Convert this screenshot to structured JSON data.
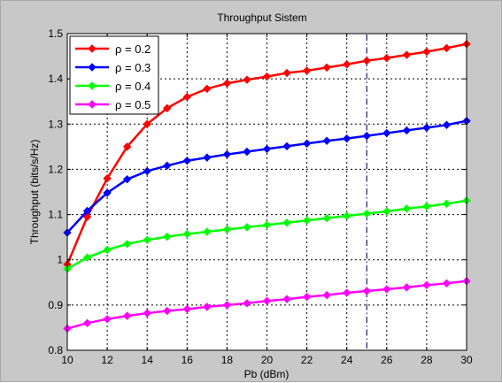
{
  "chart_data": {
    "type": "line",
    "title": "Throughput Sistem",
    "xlabel": "Pb (dBm)",
    "ylabel": "Throughput (bits/s/Hz)",
    "xlim": [
      10,
      30
    ],
    "ylim": [
      0.8,
      1.5
    ],
    "xticks": [
      "10",
      "12",
      "14",
      "16",
      "18",
      "20",
      "22",
      "24",
      "26",
      "28",
      "30"
    ],
    "yticks": [
      "0.8",
      "0.9",
      "1",
      "1.1",
      "1.2",
      "1.3",
      "1.4",
      "1.5"
    ],
    "grid": true,
    "legend_position": "top-left",
    "x": [
      10,
      11,
      12,
      13,
      14,
      15,
      16,
      17,
      18,
      19,
      20,
      21,
      22,
      23,
      24,
      25,
      26,
      27,
      28,
      29,
      30
    ],
    "series": [
      {
        "name": "ρ = 0.2",
        "color": "#ff0000",
        "values": [
          0.99,
          1.095,
          1.18,
          1.25,
          1.3,
          1.335,
          1.36,
          1.378,
          1.39,
          1.398,
          1.405,
          1.413,
          1.418,
          1.425,
          1.432,
          1.44,
          1.446,
          1.453,
          1.46,
          1.468,
          1.477
        ]
      },
      {
        "name": "ρ = 0.3",
        "color": "#0000ff",
        "values": [
          1.06,
          1.108,
          1.148,
          1.178,
          1.196,
          1.208,
          1.219,
          1.226,
          1.233,
          1.239,
          1.245,
          1.251,
          1.257,
          1.263,
          1.268,
          1.274,
          1.28,
          1.286,
          1.292,
          1.298,
          1.307
        ]
      },
      {
        "name": "ρ = 0.4",
        "color": "#00ff00",
        "values": [
          0.98,
          1.005,
          1.022,
          1.035,
          1.044,
          1.051,
          1.057,
          1.062,
          1.067,
          1.072,
          1.077,
          1.082,
          1.087,
          1.092,
          1.097,
          1.102,
          1.107,
          1.113,
          1.118,
          1.124,
          1.131
        ]
      },
      {
        "name": "ρ = 0.5",
        "color": "#ff00ff",
        "values": [
          0.848,
          0.86,
          0.869,
          0.876,
          0.882,
          0.887,
          0.891,
          0.896,
          0.9,
          0.904,
          0.909,
          0.913,
          0.918,
          0.922,
          0.927,
          0.931,
          0.935,
          0.939,
          0.944,
          0.948,
          0.953
        ]
      }
    ],
    "annotation_vline_x": 25
  }
}
